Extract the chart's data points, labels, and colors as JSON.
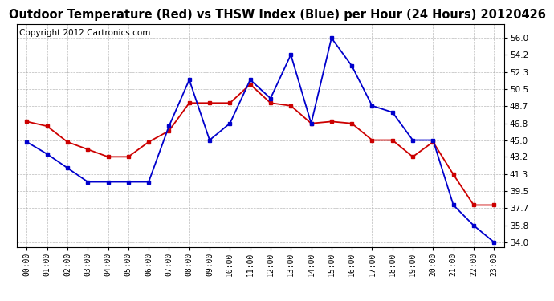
{
  "title": "Outdoor Temperature (Red) vs THSW Index (Blue) per Hour (24 Hours) 20120426",
  "copyright": "Copyright 2012 Cartronics.com",
  "hours": [
    "00:00",
    "01:00",
    "02:00",
    "03:00",
    "04:00",
    "05:00",
    "06:00",
    "07:00",
    "08:00",
    "09:00",
    "10:00",
    "11:00",
    "12:00",
    "13:00",
    "14:00",
    "15:00",
    "16:00",
    "17:00",
    "18:00",
    "19:00",
    "20:00",
    "21:00",
    "22:00",
    "23:00"
  ],
  "red_data": [
    47.0,
    46.5,
    44.8,
    44.0,
    43.2,
    43.2,
    44.8,
    46.0,
    49.0,
    49.0,
    49.0,
    51.0,
    49.0,
    48.7,
    46.8,
    47.0,
    46.8,
    45.0,
    45.0,
    43.2,
    44.8,
    41.3,
    38.0,
    38.0
  ],
  "blue_data": [
    44.8,
    43.5,
    42.0,
    40.5,
    40.5,
    40.5,
    40.5,
    46.5,
    51.5,
    45.0,
    46.8,
    51.5,
    49.5,
    54.2,
    46.8,
    56.0,
    53.0,
    48.7,
    48.0,
    45.0,
    45.0,
    38.0,
    35.8,
    34.0
  ],
  "ylim": [
    33.5,
    57.5
  ],
  "yticks": [
    34.0,
    35.8,
    37.7,
    39.5,
    41.3,
    43.2,
    45.0,
    46.8,
    48.7,
    50.5,
    52.3,
    54.2,
    56.0
  ],
  "red_color": "#cc0000",
  "blue_color": "#0000cc",
  "bg_color": "#ffffff",
  "grid_color": "#aaaaaa",
  "title_fontsize": 10.5,
  "copyright_fontsize": 7.5,
  "title_font": "DejaVu Sans",
  "marker": "s",
  "markersize": 3.5,
  "linewidth": 1.3
}
